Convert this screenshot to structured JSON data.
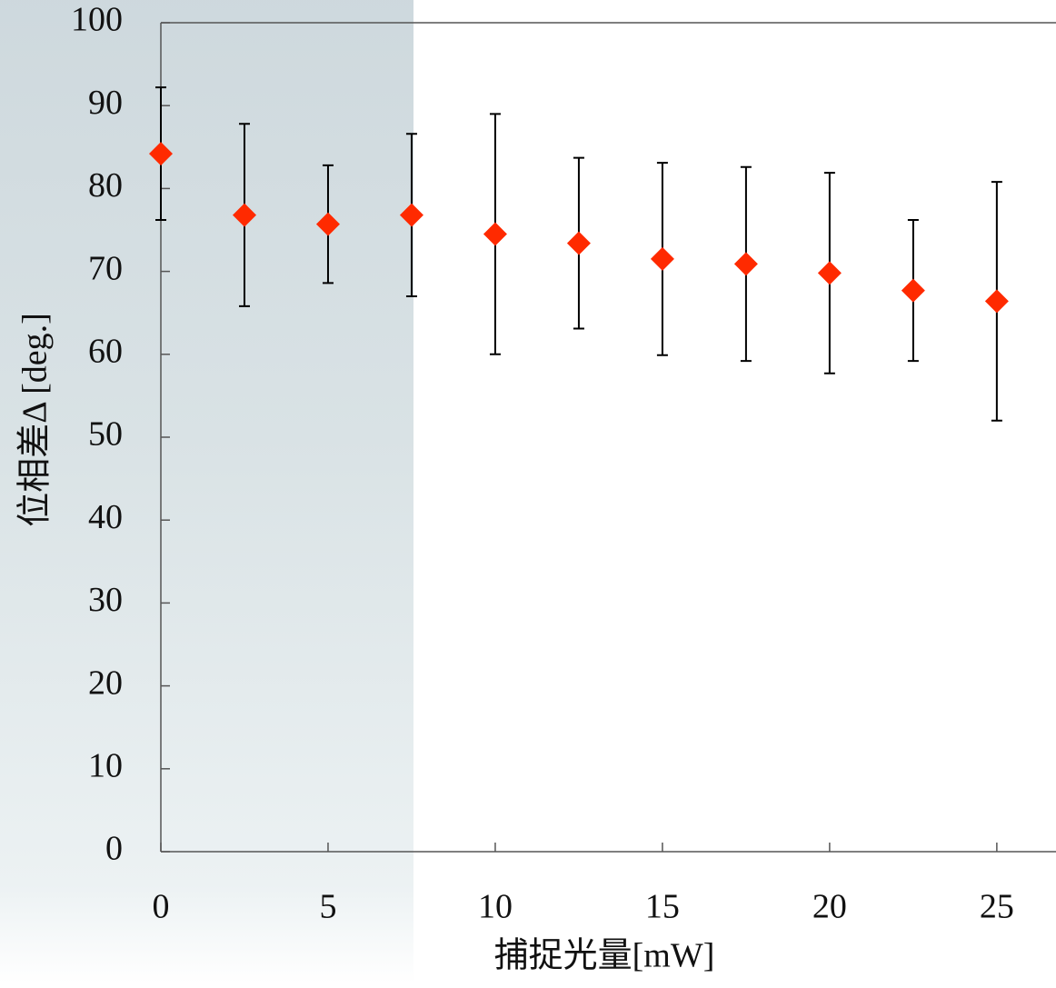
{
  "chart_data": {
    "type": "scatter",
    "xlabel": "捕捉光量[mW]",
    "ylabel": "位相差Δ [deg.]",
    "x": [
      0,
      2.5,
      5,
      7.5,
      10,
      12.5,
      15,
      17.5,
      20,
      22.5,
      25
    ],
    "values": [
      84.2,
      76.8,
      75.7,
      76.8,
      74.5,
      73.4,
      71.5,
      70.9,
      69.8,
      67.7,
      66.4
    ],
    "errors": [
      8.0,
      11.0,
      7.1,
      9.8,
      14.5,
      10.3,
      11.6,
      11.7,
      12.1,
      8.5,
      14.4
    ],
    "color": "#ff2a00",
    "xlim": [
      0,
      26.77
    ],
    "xticks": [
      0,
      5,
      10,
      15,
      20,
      25
    ],
    "ylim": [
      0,
      100
    ],
    "yticks": [
      0,
      10,
      20,
      30,
      40,
      50,
      60,
      70,
      80,
      90,
      100
    ]
  }
}
